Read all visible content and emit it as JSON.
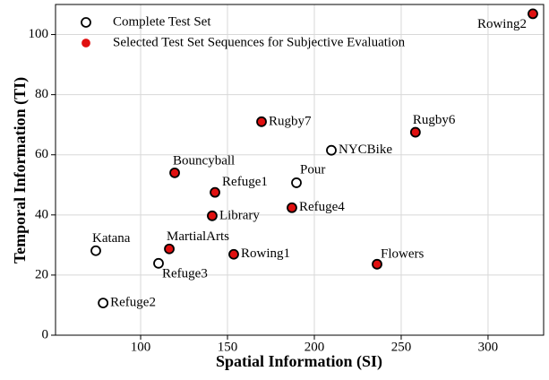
{
  "chart_data": {
    "type": "scatter",
    "xlabel": "Spatial Information (SI)",
    "ylabel": "Temporal Information (TI)",
    "xlim": [
      51,
      332
    ],
    "ylim": [
      0,
      110
    ],
    "xticks": [
      100,
      150,
      200,
      250,
      300
    ],
    "yticks": [
      0,
      20,
      40,
      60,
      80,
      100
    ],
    "grid": true,
    "legend": "upper left",
    "series": [
      {
        "name": "Complete Test Set",
        "color": "#ffffff",
        "labels": [
          "Katana",
          "Refuge2",
          "Refuge3",
          "Pour",
          "NYCBike"
        ],
        "x": [
          74.2,
          78.4,
          110.3,
          189.7,
          209.8
        ],
        "values": [
          28.1,
          10.7,
          23.9,
          50.7,
          61.5
        ]
      },
      {
        "name": "Selected Test Set Sequences for Subjective Evaluation",
        "color": "#e01010",
        "labels": [
          "MartialArts",
          "Library",
          "Refuge1",
          "Bouncyball",
          "Rowing1",
          "Rugby7",
          "Refuge4",
          "Rugby6",
          "Flowers",
          "Rowing2"
        ],
        "x": [
          116.5,
          141.2,
          142.8,
          119.6,
          153.6,
          169.6,
          187.1,
          258.2,
          236.1,
          325.8
        ],
        "values": [
          28.7,
          39.7,
          47.5,
          54.0,
          26.9,
          71.0,
          42.4,
          67.5,
          23.6,
          106.9
        ]
      }
    ]
  }
}
